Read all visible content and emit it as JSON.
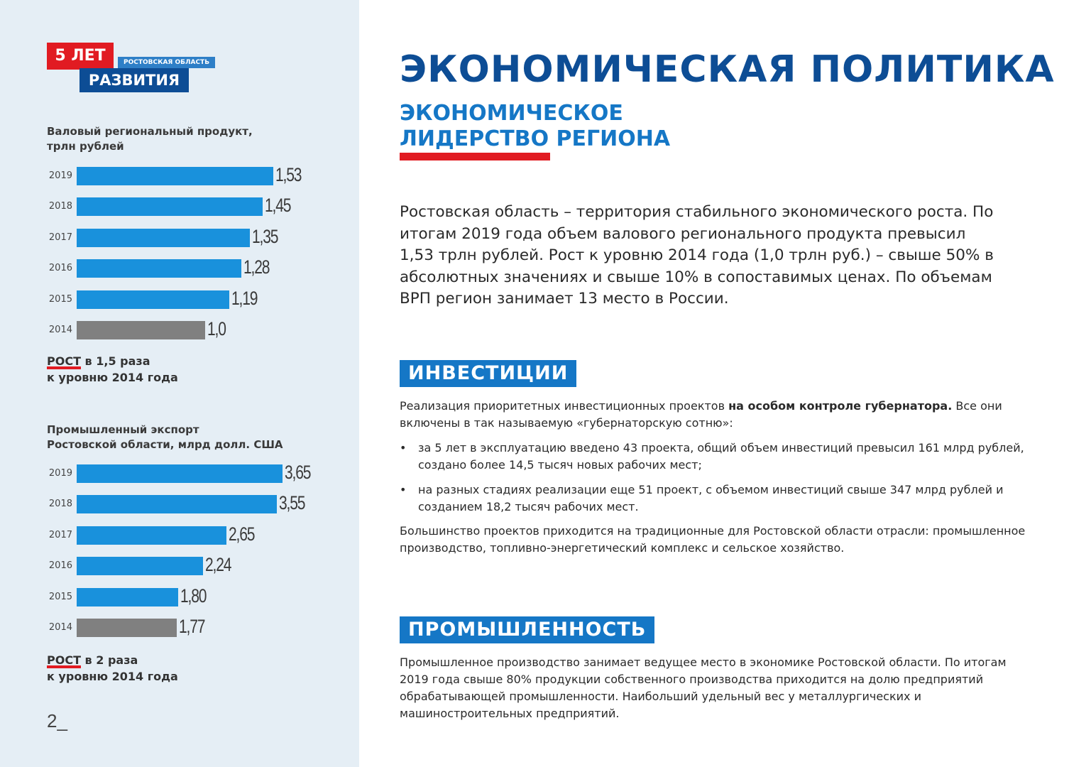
{
  "logo": {
    "years": "5 ЛЕТ",
    "region": "РОСТОВСКАЯ ОБЛАСТЬ",
    "development": "РАЗВИТИЯ"
  },
  "gdp_chart": {
    "title_line1": "Валовый региональный продукт,",
    "title_line2": "трлн рублей",
    "growth_word": "РОСТ",
    "growth_rest": " в 1,5 раза",
    "growth_line2": "к уровню 2014 года"
  },
  "export_chart": {
    "title_line1": "Промышленный экспорт",
    "title_line2": "Ростовской области, млрд долл. США",
    "growth_word": "РОСТ",
    "growth_rest": " в 2 раза",
    "growth_line2": "к уровню 2014 года"
  },
  "chart_data": [
    {
      "type": "bar",
      "title": "Валовый региональный продукт, трлн рублей",
      "categories": [
        "2019",
        "2018",
        "2017",
        "2016",
        "2015",
        "2014"
      ],
      "values": [
        1.53,
        1.45,
        1.35,
        1.28,
        1.19,
        1.0
      ],
      "labels": [
        "1,53",
        "1,45",
        "1,35",
        "1,28",
        "1,19",
        "1,0"
      ],
      "colors": [
        "#1991dc",
        "#1991dc",
        "#1991dc",
        "#1991dc",
        "#1991dc",
        "#808080"
      ],
      "orientation": "horizontal"
    },
    {
      "type": "bar",
      "title": "Промышленный экспорт Ростовской области, млрд долл. США",
      "categories": [
        "2019",
        "2018",
        "2017",
        "2016",
        "2015",
        "2014"
      ],
      "values": [
        3.65,
        3.55,
        2.65,
        2.24,
        1.8,
        1.77
      ],
      "labels": [
        "3,65",
        "3,55",
        "2,65",
        "2,24",
        "1,80",
        "1,77"
      ],
      "colors": [
        "#1991dc",
        "#1991dc",
        "#1991dc",
        "#1991dc",
        "#1991dc",
        "#808080"
      ],
      "orientation": "horizontal"
    }
  ],
  "page_number": "2",
  "main": {
    "title": "ЭКОНОМИЧЕСКАЯ ПОЛИТИКА",
    "subtitle_line1": "ЭКОНОМИЧЕСКОЕ",
    "subtitle_line2": "ЛИДЕРСТВО РЕГИОНА",
    "intro": "Ростовская область – территория стабильного экономического роста. По итогам 2019 года объем валового регионального продукта превысил 1,53 трлн рублей. Рост к уровню 2014 года (1,0 трлн руб.) – свыше 50% в абсолютных значениях и свыше 10% в сопоставимых ценах. По объемам ВРП регион занимает 13 место в России."
  },
  "investments": {
    "heading": "ИНВЕСТИЦИИ",
    "p1_start": "Реализация приоритетных инвестиционных проектов ",
    "p1_bold": "на особом контроле губернатора.",
    "p1_end": " Все они включены в так называемую «губернаторскую сотню»:",
    "bullet1": "за 5 лет в эксплуатацию введено 43 проекта, общий объем инвестиций превысил 161 млрд рублей, создано более 14,5 тысяч новых рабочих мест;",
    "bullet2": "на разных стадиях реализации еще 51 проект, с объемом инвестиций свыше 347 млрд рублей и созданием 18,2 тысяч рабочих мест.",
    "p2": "Большинство проектов приходится на традиционные для Ростовской области отрасли: промышленное производство, топливно-энергетический комплекс и сельское хозяйство."
  },
  "industry": {
    "heading": "ПРОМЫШЛЕННОСТЬ",
    "p1": "Промышленное производство занимает ведущее место в экономике Ростовской области. По итогам 2019 года свыше 80% продукции собственного производства приходится на долю предприятий обрабатывающей промышленности. Наибольший удельный вес у металлургических и машиностроительных предприятий."
  }
}
